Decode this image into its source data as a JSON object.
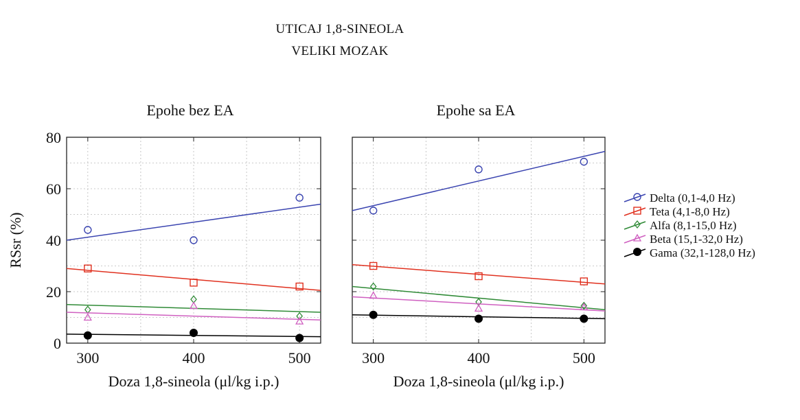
{
  "title": {
    "line1": "UTICAJ 1,8-SINEOLA",
    "line2": "VELIKI MOZAK"
  },
  "colors": {
    "Delta": "#3a44b0",
    "Teta": "#e0301e",
    "Alfa": "#2f8a36",
    "Beta": "#cf5fc0",
    "Gama": "#000000"
  },
  "chart_data": [
    {
      "type": "scatter",
      "title": "Epohe bez EA",
      "xlabel": "Doza 1,8-sineola (μl/kg i.p.)",
      "ylabel": "RSsr (%)",
      "xlim": [
        280,
        520
      ],
      "ylim": [
        0,
        80
      ],
      "xticks": [
        300,
        400,
        500
      ],
      "yticks": [
        0,
        20,
        40,
        60,
        80
      ],
      "grid": true,
      "x": [
        300,
        400,
        500
      ],
      "series": [
        {
          "name": "Delta (0,1-4,0 Hz)",
          "key": "Delta",
          "marker": "circle-open",
          "values": [
            44,
            40,
            56.5
          ],
          "fit": [
            40,
            54
          ]
        },
        {
          "name": "Teta (4,1-8,0 Hz)",
          "key": "Teta",
          "marker": "square-open",
          "values": [
            29,
            23.5,
            22
          ],
          "fit": [
            29,
            20.5
          ]
        },
        {
          "name": "Alfa (8,1-15,0 Hz)",
          "key": "Alfa",
          "marker": "diamond-open",
          "values": [
            13,
            17,
            10.5
          ],
          "fit": [
            15,
            12
          ]
        },
        {
          "name": "Beta (15,1-32,0 Hz)",
          "key": "Beta",
          "marker": "triangle-open",
          "values": [
            10,
            14.5,
            8.5
          ],
          "fit": [
            12,
            9
          ]
        },
        {
          "name": "Gama (32,1-128,0 Hz)",
          "key": "Gama",
          "marker": "circle-filled",
          "values": [
            3,
            4,
            2
          ],
          "fit": [
            3.5,
            2.5
          ]
        }
      ]
    },
    {
      "type": "scatter",
      "title": "Epohe sa EA",
      "xlabel": "Doza 1,8-sineola (μl/kg i.p.)",
      "ylabel": "",
      "xlim": [
        280,
        520
      ],
      "ylim": [
        0,
        80
      ],
      "xticks": [
        300,
        400,
        500
      ],
      "yticks": [
        0,
        20,
        40,
        60,
        80
      ],
      "grid": true,
      "x": [
        300,
        400,
        500
      ],
      "series": [
        {
          "name": "Delta (0,1-4,0 Hz)",
          "key": "Delta",
          "marker": "circle-open",
          "values": [
            51.5,
            67.5,
            70.5
          ],
          "fit": [
            51.5,
            74.5
          ]
        },
        {
          "name": "Teta (4,1-8,0 Hz)",
          "key": "Teta",
          "marker": "square-open",
          "values": [
            30,
            26,
            24
          ],
          "fit": [
            30.5,
            23
          ]
        },
        {
          "name": "Alfa (8,1-15,0 Hz)",
          "key": "Alfa",
          "marker": "diamond-open",
          "values": [
            22,
            16,
            14.5
          ],
          "fit": [
            22,
            13
          ]
        },
        {
          "name": "Beta (15,1-32,0 Hz)",
          "key": "Beta",
          "marker": "triangle-open",
          "values": [
            18.5,
            13.5,
            14
          ],
          "fit": [
            18,
            12.5
          ]
        },
        {
          "name": "Gama (32,1-128,0 Hz)",
          "key": "Gama",
          "marker": "circle-filled",
          "values": [
            11,
            9.5,
            9.5
          ],
          "fit": [
            11,
            9.5
          ]
        }
      ]
    }
  ],
  "legend": {
    "placement": "right",
    "items": [
      {
        "label": "Delta (0,1-4,0 Hz)",
        "key": "Delta",
        "marker": "circle-open"
      },
      {
        "label": "Teta (4,1-8,0 Hz)",
        "key": "Teta",
        "marker": "square-open"
      },
      {
        "label": "Alfa (8,1-15,0 Hz)",
        "key": "Alfa",
        "marker": "diamond-open"
      },
      {
        "label": "Beta (15,1-32,0 Hz)",
        "key": "Beta",
        "marker": "triangle-open"
      },
      {
        "label": "Gama (32,1-128,0 Hz)",
        "key": "Gama",
        "marker": "circle-filled"
      }
    ]
  }
}
